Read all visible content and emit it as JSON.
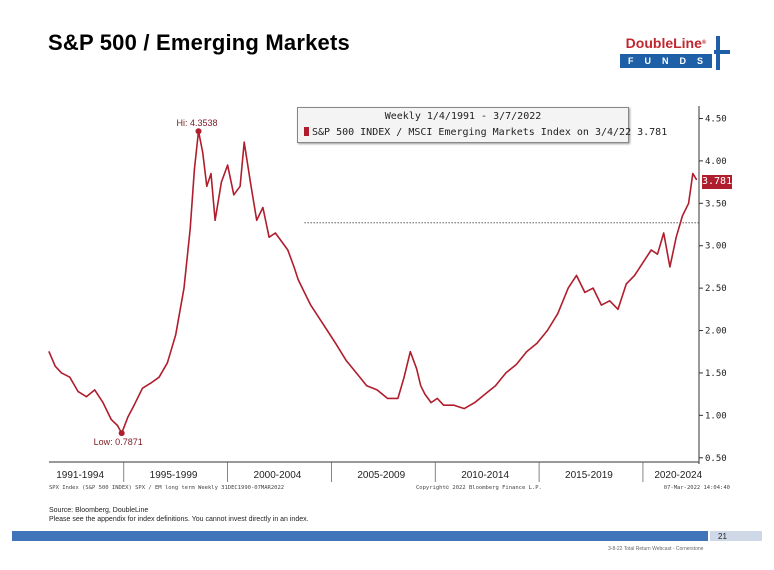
{
  "slide": {
    "title": "S&P 500 / Emerging Markets",
    "page_number": "21",
    "footer_note": "3-8-22 Total Return Webcast - Cornerstone",
    "source_line1": "Source: Bloomberg, DoubleLine",
    "source_line2": "Please see the appendix for index definitions. You cannot invest directly in an index."
  },
  "logo": {
    "name": "DoubleLine",
    "registered": "®",
    "sub": "FUNDS"
  },
  "colors": {
    "series": "#b01d2d",
    "brand_blue": "#3f74b9"
  },
  "chart_data": {
    "type": "line",
    "legend_title": "Weekly 1/4/1991 - 3/7/2022",
    "legend_series": "S&P 500 INDEX / MSCI Emerging Markets Index on 3/4/22 3.781",
    "current_value_tag": "3.781",
    "high_label": "Hi: 4.3538",
    "low_label": "Low: 0.7871",
    "reference_level": 3.27,
    "ylim": [
      0.45,
      4.6
    ],
    "yticks": [
      0.5,
      1.0,
      1.5,
      2.0,
      2.5,
      3.0,
      3.5,
      4.0,
      4.5
    ],
    "ytick_labels": [
      "0.50",
      "1.00",
      "1.50",
      "2.00",
      "2.50",
      "3.00",
      "3.50",
      "4.00",
      "4.50"
    ],
    "xlim": [
      1991.0,
      2022.3
    ],
    "x_period_labels": [
      "1991-1994",
      "1995-1999",
      "2000-2004",
      "2005-2009",
      "2010-2014",
      "2015-2019",
      "2020-2024"
    ],
    "x_period_centers": [
      1992.5,
      1997.0,
      2002.0,
      2007.0,
      2012.0,
      2017.0,
      2021.3
    ],
    "x_period_dividers": [
      1994.6,
      1999.6,
      2004.6,
      2009.6,
      2014.6,
      2019.6
    ],
    "bottom_left_text": "SPX Index (S&P 500 INDEX) SPX / EM long term  Weekly 31DEC1990-07MAR2022",
    "bottom_center_text": "Copyright© 2022 Bloomberg Finance L.P.",
    "bottom_right_text": "07-Mar-2022 14:04:40",
    "x": [
      1991.0,
      1991.3,
      1991.6,
      1992.0,
      1992.4,
      1992.8,
      1993.2,
      1993.6,
      1994.0,
      1994.3,
      1994.5,
      1994.8,
      1995.1,
      1995.5,
      1995.9,
      1996.3,
      1996.7,
      1997.1,
      1997.5,
      1997.8,
      1998.0,
      1998.2,
      1998.4,
      1998.6,
      1998.8,
      1999.0,
      1999.3,
      1999.6,
      1999.9,
      2000.2,
      2000.4,
      2000.7,
      2001.0,
      2001.3,
      2001.6,
      2001.9,
      2002.2,
      2002.5,
      2002.8,
      2003.0,
      2003.3,
      2003.6,
      2004.0,
      2004.4,
      2004.8,
      2005.3,
      2005.8,
      2006.3,
      2006.8,
      2007.3,
      2007.8,
      2008.1,
      2008.4,
      2008.7,
      2008.9,
      2009.1,
      2009.4,
      2009.7,
      2010.0,
      2010.5,
      2011.0,
      2011.5,
      2012.0,
      2012.5,
      2013.0,
      2013.5,
      2014.0,
      2014.5,
      2015.0,
      2015.5,
      2016.0,
      2016.4,
      2016.8,
      2017.2,
      2017.6,
      2018.0,
      2018.4,
      2018.8,
      2019.2,
      2019.6,
      2020.0,
      2020.3,
      2020.6,
      2020.9,
      2021.2,
      2021.5,
      2021.8,
      2022.0,
      2022.18
    ],
    "values": [
      1.75,
      1.58,
      1.5,
      1.45,
      1.28,
      1.22,
      1.3,
      1.15,
      0.95,
      0.88,
      0.79,
      0.98,
      1.12,
      1.32,
      1.38,
      1.45,
      1.62,
      1.95,
      2.5,
      3.2,
      3.9,
      4.35,
      4.1,
      3.7,
      3.85,
      3.3,
      3.75,
      3.95,
      3.6,
      3.7,
      4.22,
      3.75,
      3.3,
      3.45,
      3.1,
      3.15,
      3.05,
      2.95,
      2.75,
      2.6,
      2.45,
      2.3,
      2.15,
      2.0,
      1.85,
      1.65,
      1.5,
      1.35,
      1.3,
      1.2,
      1.2,
      1.45,
      1.75,
      1.55,
      1.35,
      1.25,
      1.15,
      1.2,
      1.12,
      1.12,
      1.08,
      1.15,
      1.25,
      1.35,
      1.5,
      1.6,
      1.75,
      1.85,
      2.0,
      2.2,
      2.5,
      2.65,
      2.45,
      2.5,
      2.3,
      2.35,
      2.25,
      2.55,
      2.65,
      2.8,
      2.95,
      2.9,
      3.15,
      2.75,
      3.1,
      3.35,
      3.5,
      3.85,
      3.78
    ]
  }
}
